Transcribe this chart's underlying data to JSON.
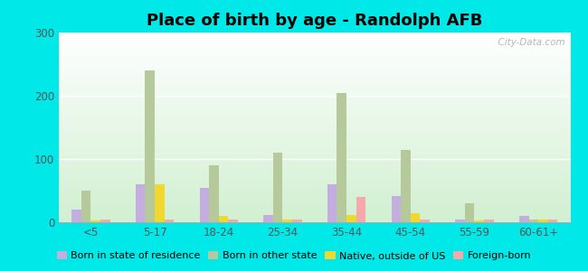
{
  "title": "Place of birth by age - Randolph AFB",
  "categories": [
    "<5",
    "5-17",
    "18-24",
    "25-34",
    "35-44",
    "45-54",
    "55-59",
    "60-61+"
  ],
  "series": {
    "Born in state of residence": [
      20,
      60,
      55,
      12,
      60,
      42,
      5,
      10
    ],
    "Born in other state": [
      50,
      240,
      90,
      110,
      205,
      115,
      30,
      5
    ],
    "Native, outside of US": [
      3,
      60,
      10,
      5,
      12,
      15,
      3,
      5
    ],
    "Foreign-born": [
      5,
      5,
      5,
      5,
      40,
      5,
      5,
      5
    ]
  },
  "colors": {
    "Born in state of residence": "#c4aee0",
    "Born in other state": "#b5c99a",
    "Native, outside of US": "#f0d830",
    "Foreign-born": "#f4aaaa"
  },
  "ylim": [
    0,
    300
  ],
  "yticks": [
    0,
    100,
    200,
    300
  ],
  "outer_background": "#00e8e8",
  "bar_width": 0.15,
  "title_fontsize": 13,
  "legend_fontsize": 8,
  "watermark": "  City-Data.com"
}
